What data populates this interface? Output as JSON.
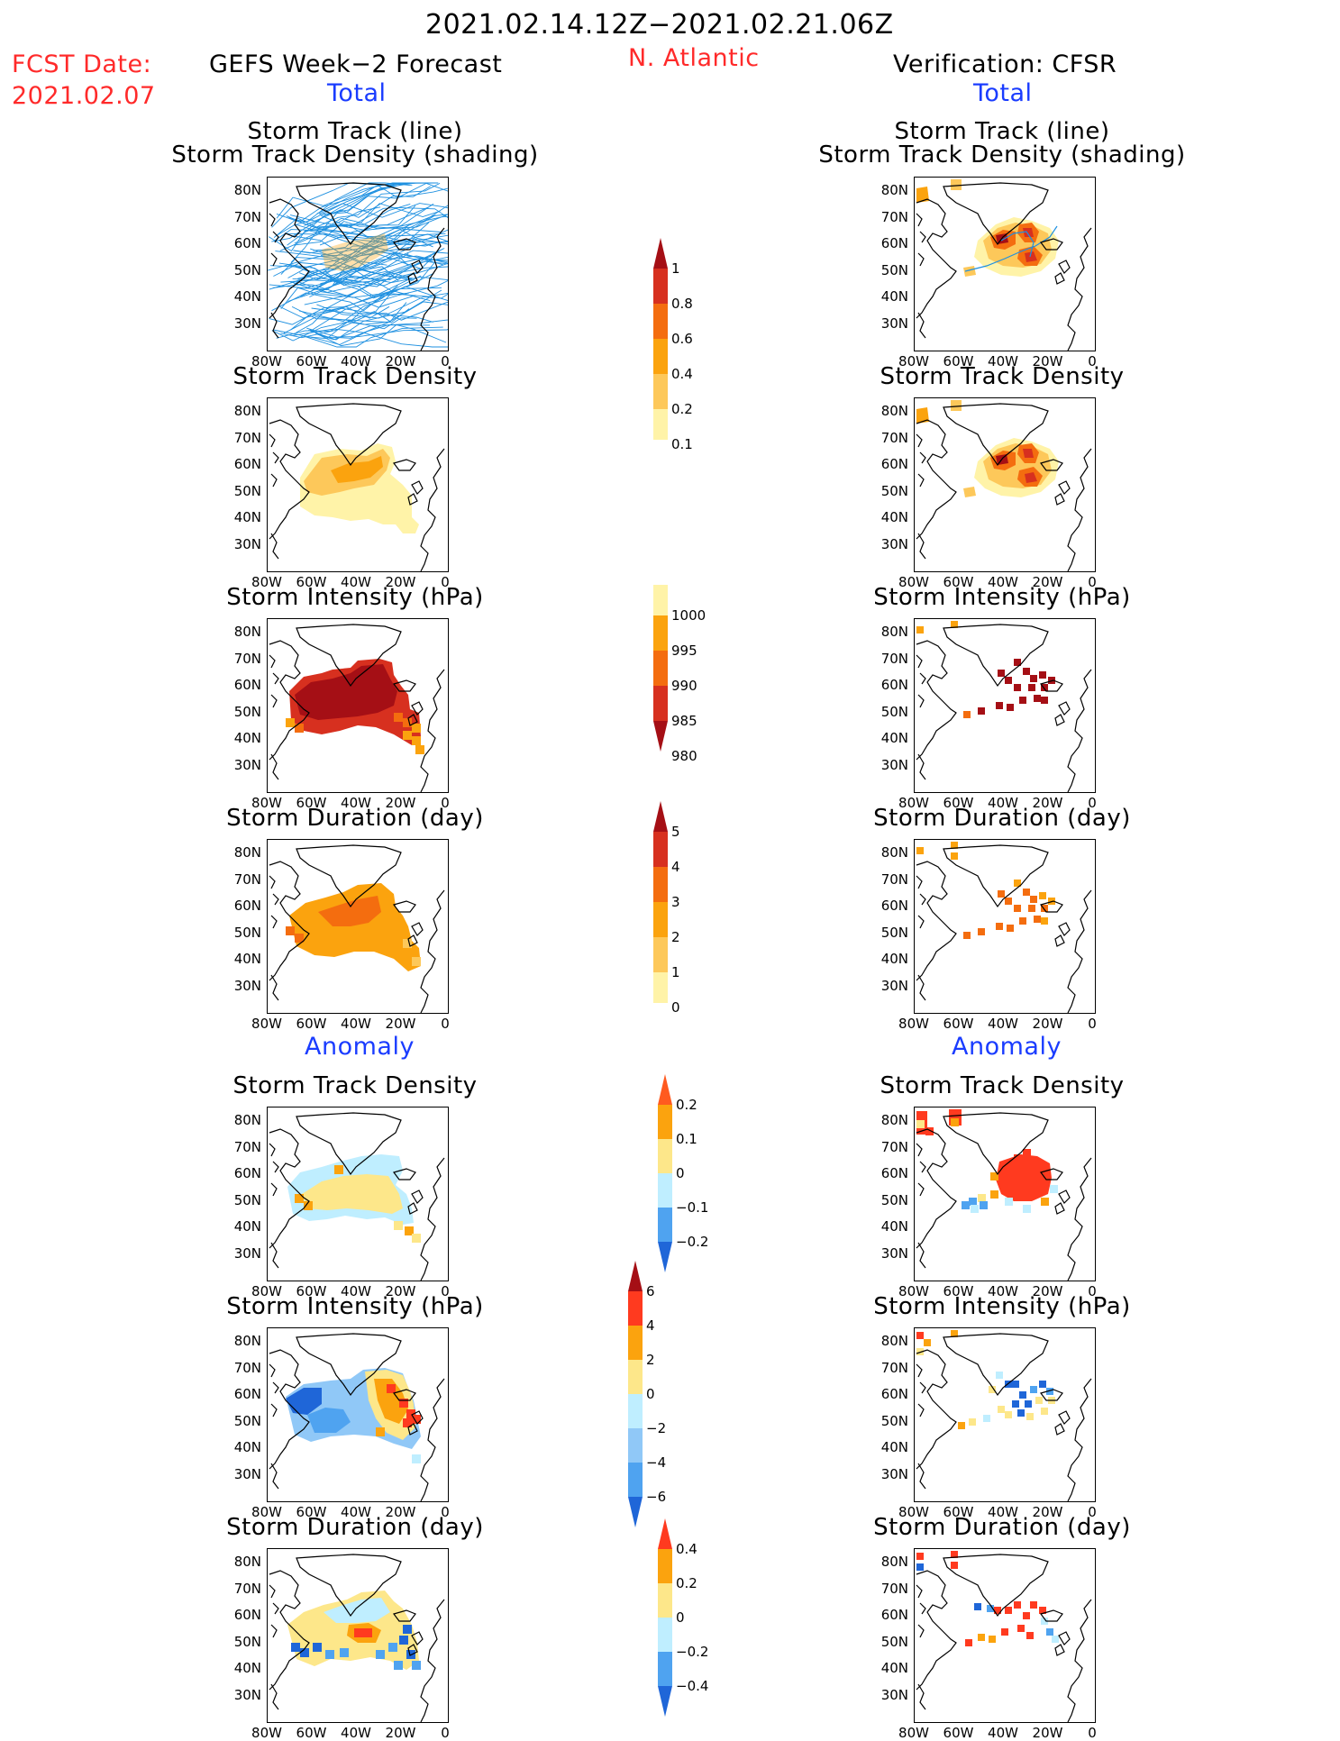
{
  "header": {
    "period": "2021.02.14.12Z−2021.02.21.06Z",
    "fcst_label": "FCST Date:",
    "fcst_date": "2021.02.07",
    "left_title": "GEFS Week−2 Forecast",
    "region": "N. Atlantic",
    "right_title": "Verification: CFSR",
    "total_left": "Total",
    "total_right": "Total",
    "anomaly_left": "Anomaly",
    "anomaly_right": "Anomaly"
  },
  "panel_titles": {
    "p1a": "Storm Track (line)",
    "p1b": "Storm Track Density (shading)",
    "p2": "Storm Track Density",
    "p3": "Storm Intensity (hPa)",
    "p4": "Storm Duration (day)",
    "p5": "Storm Track Density",
    "p6": "Storm Intensity (hPa)",
    "p7": "Storm Duration (day)"
  },
  "axes": {
    "lat_ticks": [
      "80N",
      "70N",
      "60N",
      "50N",
      "40N",
      "30N"
    ],
    "lon_ticks": [
      "80W",
      "60W",
      "40W",
      "20W",
      "0"
    ]
  },
  "colorbars": {
    "density_total": {
      "labels": [
        "1",
        "0.8",
        "0.6",
        "0.4",
        "0.2",
        "0.1"
      ],
      "colors": [
        "#a50f15",
        "#d7301f",
        "#f46d0f",
        "#fba30e",
        "#fdc85a",
        "#fff3a8"
      ]
    },
    "intensity_total": {
      "labels": [
        "1000",
        "995",
        "990",
        "985",
        "980"
      ],
      "colors": [
        "#fff3a8",
        "#fba30e",
        "#f46d0f",
        "#d7301f",
        "#a50f15"
      ]
    },
    "duration_total": {
      "labels": [
        "5",
        "4",
        "3",
        "2",
        "1",
        "0"
      ],
      "colors": [
        "#a50f15",
        "#d7301f",
        "#f46d0f",
        "#fba30e",
        "#fdc85a",
        "#fff3a8"
      ]
    },
    "density_anom": {
      "labels": [
        "0.2",
        "0.1",
        "0",
        "−0.1",
        "−0.2"
      ],
      "colors": [
        "#ff5a1f",
        "#fba30e",
        "#fde78a",
        "#bfeeff",
        "#4fa3f0",
        "#1f66d8"
      ]
    },
    "intensity_anom": {
      "labels": [
        "6",
        "4",
        "2",
        "0",
        "−2",
        "−4",
        "−6"
      ],
      "colors": [
        "#a50f15",
        "#ff3a1f",
        "#fba30e",
        "#fde78a",
        "#bfeeff",
        "#90c8f7",
        "#4fa3f0",
        "#1f66d8"
      ]
    },
    "duration_anom": {
      "labels": [
        "0.4",
        "0.2",
        "0",
        "−0.2",
        "−0.4"
      ],
      "colors": [
        "#ff3a1f",
        "#fba30e",
        "#fde78a",
        "#bfeeff",
        "#4fa3f0",
        "#1f66d8"
      ]
    }
  }
}
